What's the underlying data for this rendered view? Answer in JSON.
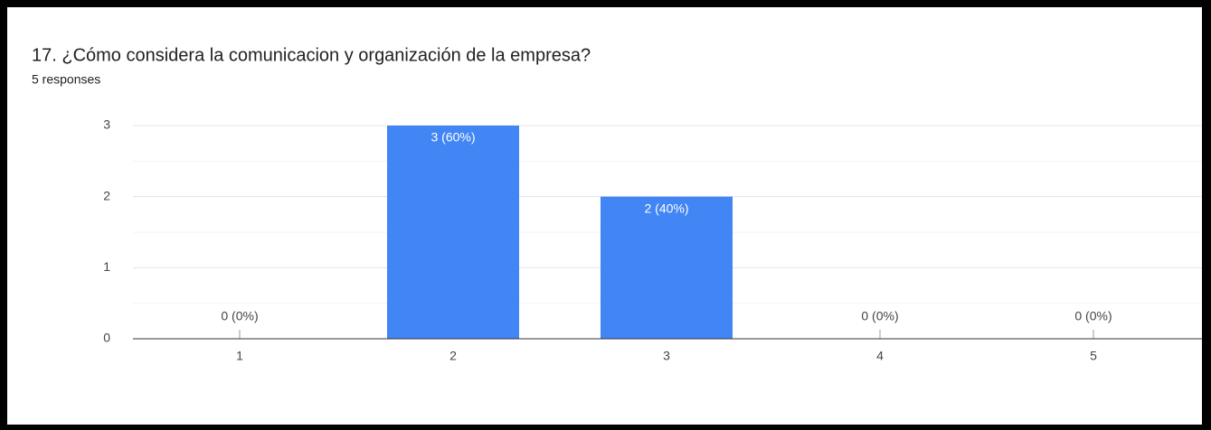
{
  "chart_data": {
    "type": "bar",
    "title": "17.  ¿Cómo considera la comunicacion y organización de la empresa?",
    "subtitle": "5 responses",
    "categories": [
      "1",
      "2",
      "3",
      "4",
      "5"
    ],
    "values": [
      0,
      3,
      2,
      0,
      0
    ],
    "value_labels": [
      "0 (0%)",
      "3 (60%)",
      "2 (40%)",
      "0 (0%)",
      "0 (0%)"
    ],
    "color": "#4285f4",
    "ylim": [
      0,
      3
    ],
    "yticks": [
      0,
      1,
      2,
      3
    ],
    "grid": true
  }
}
